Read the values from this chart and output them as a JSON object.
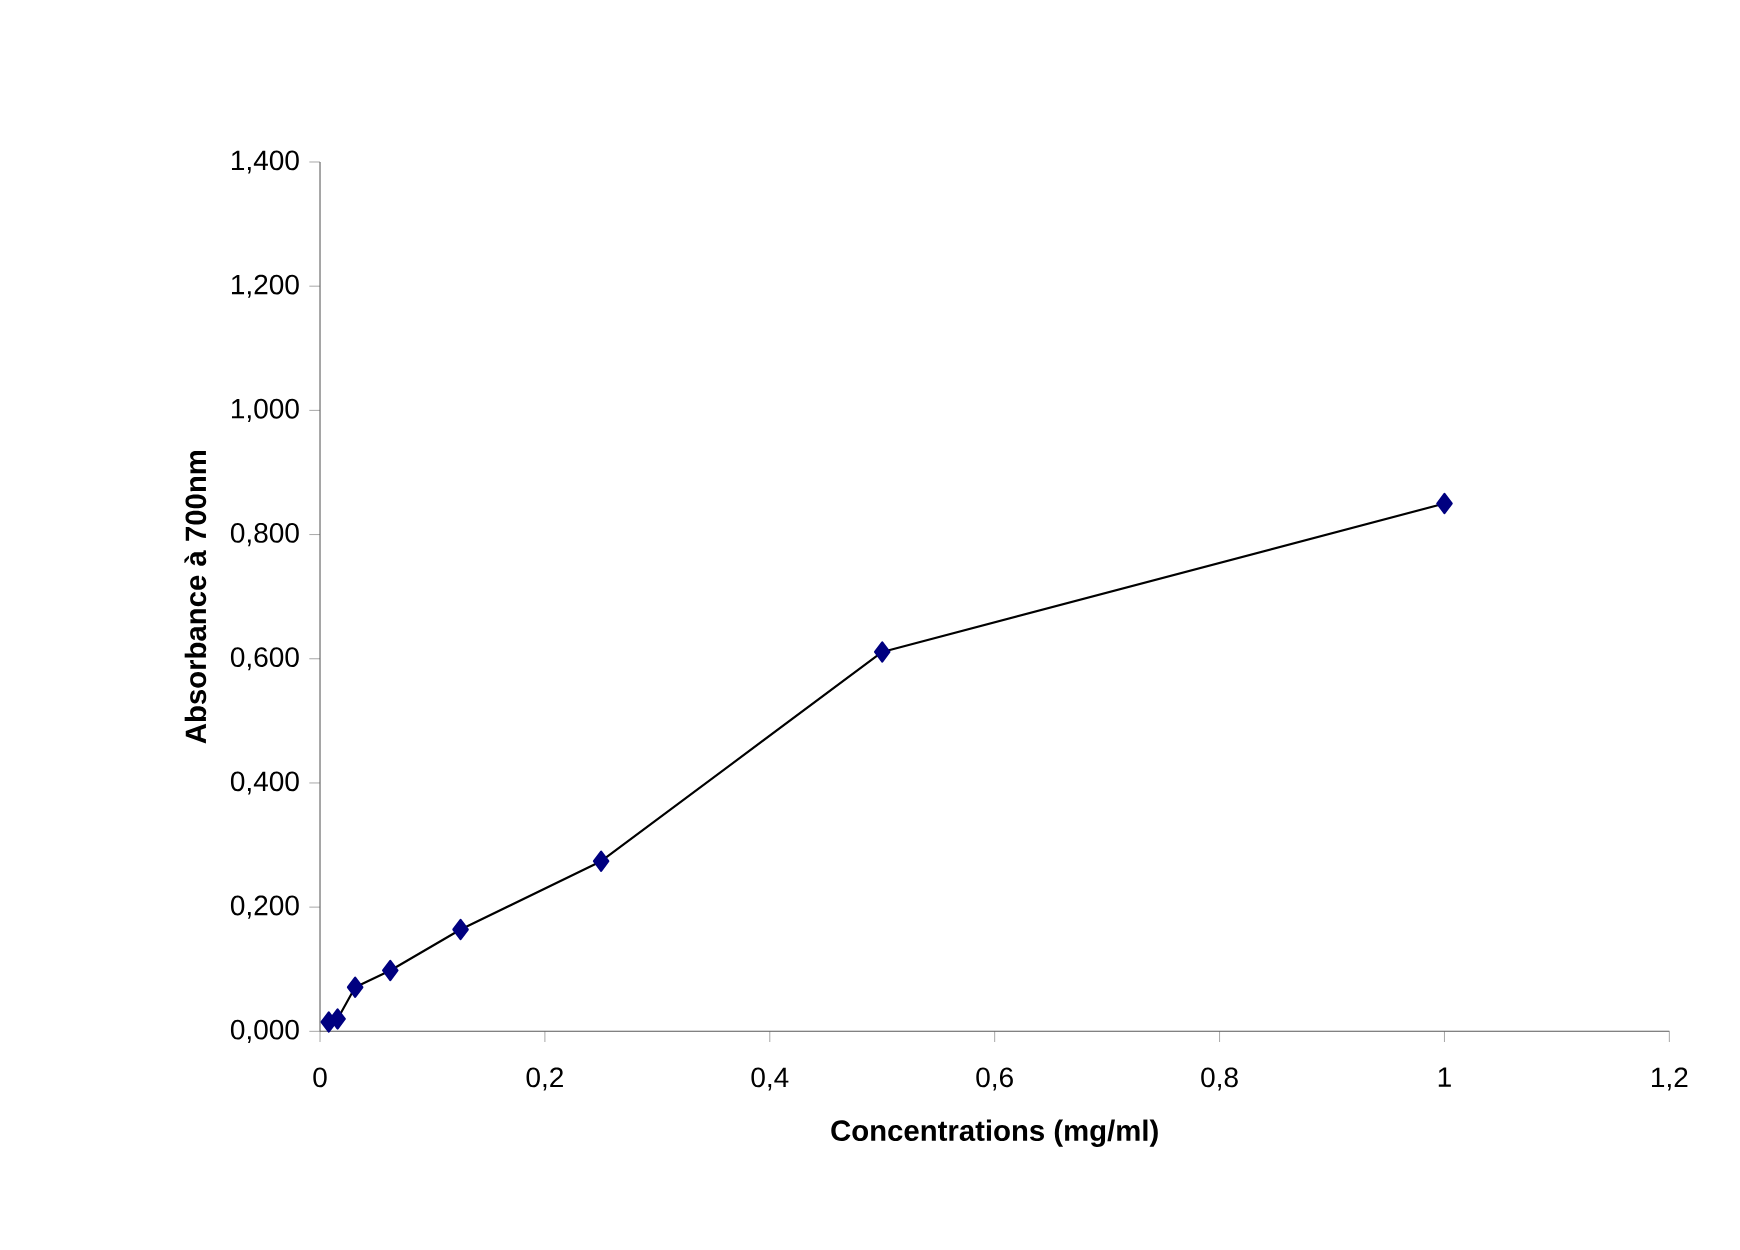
{
  "chart_data": {
    "type": "line",
    "xlabel": "Concentrations (mg/ml)",
    "ylabel": "Absorbance à 700nm",
    "x": [
      0.0078,
      0.015625,
      0.03125,
      0.0625,
      0.125,
      0.25,
      0.5,
      1
    ],
    "series": [
      {
        "color": "#000080",
        "values": [
          0.015,
          0.02,
          0.071,
          0.098,
          0.164,
          0.274,
          0.611,
          0.85
        ]
      }
    ],
    "marker": "diamond",
    "line_style": "solid",
    "grid": false,
    "xlim": [
      0,
      1.2
    ],
    "ylim": [
      0,
      1.4
    ],
    "xticks": [
      0,
      {
        "value": 0.2,
        "label": "0,2"
      },
      {
        "value": 0.4,
        "label": "0,4"
      },
      {
        "value": 0.6,
        "label": "0,6"
      },
      {
        "value": 0.8,
        "label": "0,8"
      },
      1,
      {
        "value": 1.2,
        "label": "1,2"
      }
    ],
    "yticks": [
      {
        "value": 0,
        "label": "0,000"
      },
      {
        "value": 0.2,
        "label": "0,200"
      },
      {
        "value": 0.4,
        "label": "0,400"
      },
      {
        "value": 0.6,
        "label": "0,600"
      },
      {
        "value": 0.8,
        "label": "0,800"
      },
      {
        "value": 1.0,
        "label": "1,000"
      },
      {
        "value": 1.2,
        "label": "1,200"
      },
      {
        "value": 1.4,
        "label": "1,400"
      }
    ]
  }
}
